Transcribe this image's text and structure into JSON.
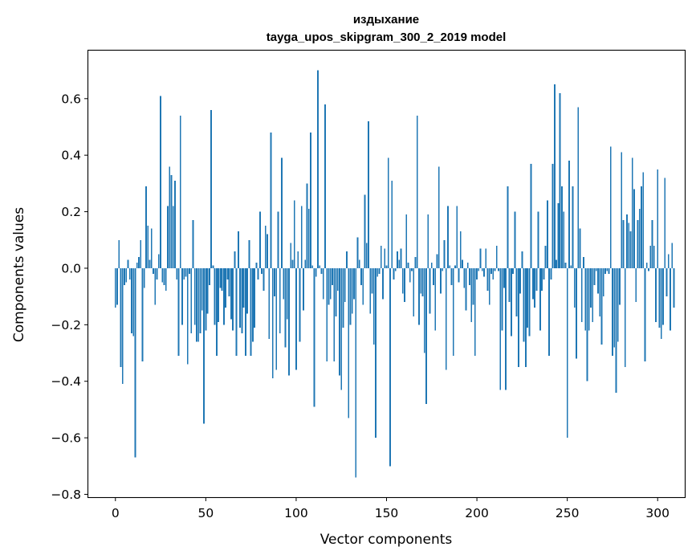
{
  "chart_data": {
    "type": "bar",
    "title": "издыхание",
    "subtitle": "tayga_upos_skipgram_300_2_2019 model",
    "xlabel": "Vector components",
    "ylabel": "Components values",
    "xlim": [
      -15,
      315
    ],
    "ylim": [
      -0.81,
      0.77
    ],
    "xticks": [
      0,
      50,
      100,
      150,
      200,
      250,
      300
    ],
    "yticks": [
      -0.8,
      -0.6,
      -0.4,
      -0.2,
      0.0,
      0.2,
      0.4,
      0.6
    ],
    "ytick_labels": [
      "−0.8",
      "−0.6",
      "−0.4",
      "−0.2",
      "0.0",
      "0.2",
      "0.4",
      "0.6"
    ],
    "bar_color": "#1f77b4",
    "values": [
      -0.14,
      -0.13,
      0.1,
      -0.35,
      -0.41,
      -0.06,
      -0.05,
      0.03,
      -0.04,
      -0.23,
      -0.24,
      -0.67,
      0.02,
      0.04,
      0.1,
      -0.33,
      -0.07,
      0.29,
      0.15,
      0.03,
      0.14,
      -0.02,
      -0.13,
      -0.04,
      0.05,
      0.61,
      -0.05,
      -0.06,
      -0.08,
      0.22,
      0.36,
      0.33,
      0.22,
      0.31,
      -0.04,
      -0.31,
      0.54,
      -0.2,
      -0.04,
      -0.03,
      -0.34,
      -0.02,
      -0.23,
      0.17,
      -0.2,
      -0.26,
      -0.26,
      -0.23,
      -0.15,
      -0.55,
      -0.22,
      -0.16,
      -0.06,
      0.56,
      0.01,
      -0.2,
      -0.31,
      -0.19,
      -0.07,
      -0.08,
      -0.2,
      -0.14,
      -0.04,
      -0.1,
      -0.18,
      -0.22,
      0.06,
      -0.31,
      0.13,
      -0.21,
      -0.23,
      -0.14,
      -0.31,
      -0.16,
      0.1,
      -0.31,
      -0.26,
      -0.21,
      0.02,
      -0.04,
      0.2,
      -0.02,
      -0.08,
      0.15,
      0.12,
      -0.25,
      0.48,
      -0.39,
      -0.1,
      -0.36,
      0.2,
      -0.23,
      0.39,
      -0.11,
      -0.28,
      -0.18,
      -0.38,
      0.09,
      0.03,
      0.24,
      -0.36,
      0.06,
      -0.26,
      0.22,
      -0.15,
      0.03,
      0.3,
      0.21,
      0.48,
      0.01,
      -0.49,
      -0.03,
      0.7,
      0.01,
      -0.02,
      -0.11,
      0.58,
      -0.33,
      -0.13,
      -0.11,
      -0.06,
      -0.33,
      -0.17,
      -0.08,
      -0.38,
      -0.43,
      -0.21,
      -0.12,
      0.06,
      -0.53,
      -0.2,
      -0.16,
      -0.11,
      -0.74,
      0.11,
      0.03,
      -0.06,
      -0.13,
      0.26,
      0.09,
      0.52,
      -0.16,
      -0.09,
      -0.27,
      -0.6,
      -0.03,
      -0.02,
      0.08,
      -0.11,
      0.07,
      0.01,
      0.39,
      -0.7,
      0.31,
      -0.04,
      -0.01,
      0.06,
      0.03,
      0.07,
      -0.09,
      -0.12,
      0.19,
      0.02,
      -0.05,
      -0.01,
      -0.17,
      0.04,
      0.54,
      -0.2,
      -0.09,
      -0.1,
      -0.3,
      -0.48,
      0.19,
      -0.16,
      0.02,
      -0.06,
      -0.22,
      0.05,
      0.36,
      -0.09,
      -0.01,
      0.1,
      -0.36,
      0.22,
      0.01,
      -0.06,
      -0.31,
      0.01,
      0.22,
      -0.05,
      0.13,
      0.03,
      -0.07,
      -0.15,
      0.02,
      -0.06,
      -0.19,
      -0.13,
      -0.31,
      -0.04,
      -0.01,
      0.07,
      -0.01,
      -0.03,
      0.07,
      -0.08,
      -0.13,
      -0.02,
      -0.04,
      -0.01,
      0.08,
      -0.01,
      -0.43,
      -0.22,
      -0.07,
      -0.43,
      0.29,
      -0.12,
      -0.24,
      -0.02,
      0.2,
      -0.17,
      -0.35,
      -0.09,
      0.06,
      -0.26,
      -0.35,
      -0.21,
      -0.24,
      0.37,
      -0.11,
      -0.14,
      -0.08,
      0.2,
      -0.22,
      -0.08,
      -0.04,
      0.08,
      0.24,
      -0.31,
      -0.04,
      0.37,
      0.65,
      0.03,
      0.23,
      0.62,
      0.29,
      0.2,
      0.02,
      -0.6,
      0.38,
      0.01,
      0.29,
      -0.14,
      -0.32,
      0.57,
      0.14,
      -0.19,
      0.04,
      -0.22,
      -0.4,
      -0.22,
      -0.14,
      -0.19,
      -0.06,
      -0.01,
      -0.09,
      -0.17,
      -0.27,
      -0.1,
      -0.02,
      -0.01,
      -0.02,
      0.43,
      -0.31,
      -0.28,
      -0.44,
      -0.26,
      -0.13,
      0.41,
      0.17,
      -0.35,
      0.19,
      0.16,
      0.13,
      0.39,
      0.28,
      -0.12,
      0.17,
      0.21,
      0.29,
      0.34,
      -0.33,
      0.02,
      -0.01,
      0.08,
      0.17,
      0.08,
      -0.19,
      0.35,
      -0.21,
      -0.25,
      -0.2,
      0.32,
      -0.1,
      0.05,
      -0.22,
      0.09,
      -0.14
    ]
  }
}
